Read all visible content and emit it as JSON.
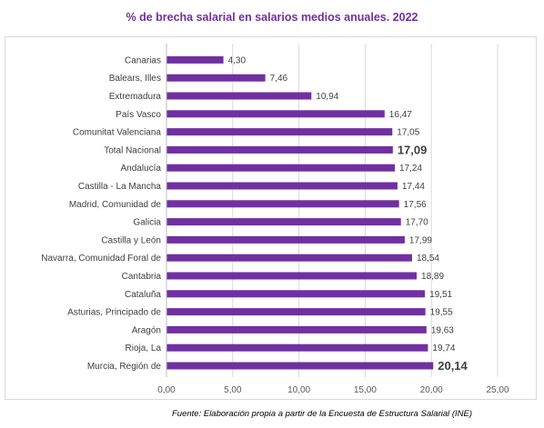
{
  "chart_data": {
    "type": "bar",
    "orientation": "horizontal",
    "title": "% de brecha salarial en salarios medios anuales. 2022",
    "categories": [
      "Canarias",
      "Balears, Illes",
      "Extremadura",
      "País Vasco",
      "Comunitat Valenciana",
      "Total Nacional",
      "Andalucía",
      "Castilla - La Mancha",
      "Madrid, Comunidad de",
      "Galicia",
      "Castilla y León",
      "Navarra, Comunidad Foral de",
      "Cantabria",
      "Cataluña",
      "Asturias, Principado de",
      "Aragón",
      "Rioja, La",
      "Murcia, Región de"
    ],
    "values": [
      4.3,
      7.46,
      10.94,
      16.47,
      17.05,
      17.09,
      17.24,
      17.44,
      17.56,
      17.7,
      17.99,
      18.54,
      18.89,
      19.51,
      19.55,
      19.63,
      19.74,
      20.14
    ],
    "value_labels": [
      "4,30",
      "7,46",
      "10,94",
      "16,47",
      "17,05",
      "17,09",
      "17,24",
      "17,44",
      "17,56",
      "17,70",
      "17,99",
      "18,54",
      "18,89",
      "19,51",
      "19,55",
      "19,63",
      "19,74",
      "20,14"
    ],
    "highlighted_labels": [
      "Total Nacional",
      "Murcia, Región de"
    ],
    "xlim": [
      0,
      25
    ],
    "xticks": [
      0,
      5,
      10,
      15,
      20,
      25
    ],
    "xtick_labels": [
      "0,00",
      "5,00",
      "10,00",
      "15,00",
      "20,00",
      "25,00"
    ],
    "grid": "vertical",
    "bar_color": "#7030a0",
    "title_color": "#7030a0",
    "xlabel": "",
    "ylabel": ""
  },
  "source": "Fuente: Elaboración propia a partir de la Encuesta de Estructura Salarial (INE)"
}
